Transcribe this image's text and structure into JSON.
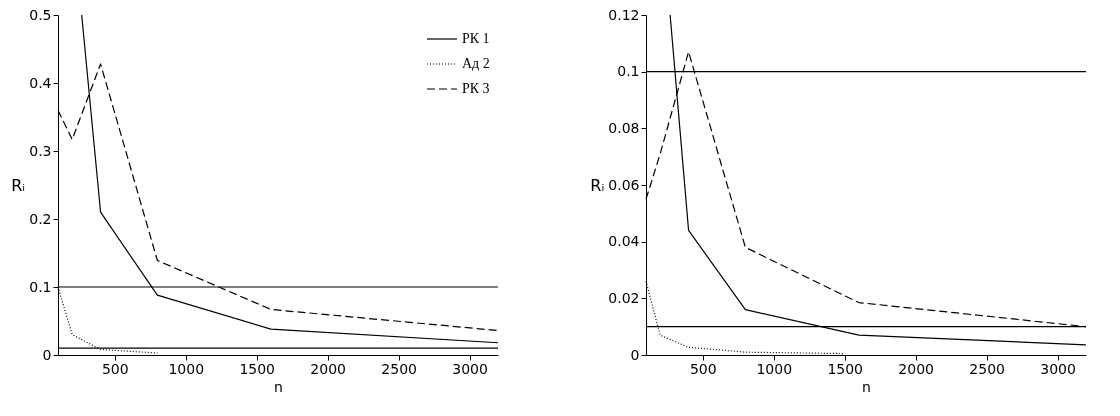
{
  "chart_data": [
    {
      "type": "line",
      "xlabel": "n",
      "ylabel": "Rᵢ",
      "xlim": [
        100,
        3200
      ],
      "ylim": [
        0,
        0.5
      ],
      "xticks": [
        500,
        1000,
        1500,
        2000,
        2500,
        3000
      ],
      "yticks": [
        0,
        0.1,
        0.2,
        0.3,
        0.4,
        0.5
      ],
      "grid": false,
      "legend": "top right",
      "series": [
        {
          "name": "РК 1",
          "color": "#000000",
          "line_style": "solid",
          "x": [
            267,
            400,
            800,
            1600,
            3200
          ],
          "values": [
            0.5,
            0.21,
            0.088,
            0.038,
            0.018
          ]
        },
        {
          "name": "Ад 2",
          "color": "#000000",
          "line_style": "dotted",
          "x": [
            100,
            200,
            400,
            800
          ],
          "values": [
            0.1,
            0.03,
            0.008,
            0.003
          ]
        },
        {
          "name": "РК 3",
          "color": "#000000",
          "line_style": "dashed",
          "x": [
            100,
            200,
            400,
            800,
            1600,
            3200
          ],
          "values": [
            0.36,
            0.317,
            0.428,
            0.139,
            0.067,
            0.036
          ]
        }
      ],
      "ref_lines": [
        {
          "axis": "y",
          "value": 0.1,
          "color": "#000000"
        },
        {
          "axis": "y",
          "value": 0.01,
          "color": "#000000"
        }
      ]
    },
    {
      "type": "line",
      "xlabel": "n",
      "ylabel": "Rᵢ",
      "xlim": [
        100,
        3200
      ],
      "ylim": [
        0,
        0.12
      ],
      "xticks": [
        500,
        1000,
        1500,
        2000,
        2500,
        3000
      ],
      "yticks": [
        0,
        0.02,
        0.04,
        0.06,
        0.08,
        0.1,
        0.12
      ],
      "grid": false,
      "series": [
        {
          "color": "#000000",
          "line_style": "solid",
          "x": [
            270,
            400,
            800,
            1600,
            3200
          ],
          "values": [
            0.12,
            0.044,
            0.016,
            0.007,
            0.0036
          ]
        },
        {
          "color": "#000000",
          "line_style": "dotted",
          "x": [
            100,
            200,
            400,
            800,
            1500
          ],
          "values": [
            0.026,
            0.007,
            0.0027,
            0.001,
            0.0005
          ]
        },
        {
          "color": "#000000",
          "line_style": "dashed",
          "x": [
            100,
            200,
            400,
            800,
            1600,
            3200
          ],
          "values": [
            0.055,
            0.071,
            0.107,
            0.038,
            0.0185,
            0.01
          ]
        }
      ],
      "ref_lines": [
        {
          "axis": "y",
          "value": 0.1,
          "color": "#000000"
        },
        {
          "axis": "y",
          "value": 0.01,
          "color": "#000000"
        }
      ]
    }
  ]
}
